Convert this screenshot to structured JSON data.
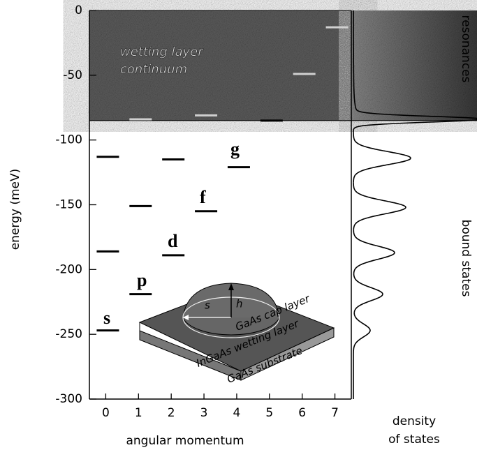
{
  "chart_data": {
    "type": "level",
    "y_label": "energy (meV)",
    "x_label": "angular momentum",
    "xlim": [
      -0.5,
      7.5
    ],
    "xticks": [
      0,
      1,
      2,
      3,
      4,
      5,
      6,
      7
    ],
    "ylim": [
      -300,
      0
    ],
    "yticks": [
      0,
      -50,
      -100,
      -150,
      -200,
      -250,
      -300
    ],
    "continuum_edge": -85,
    "continuum_label": [
      "wetting layer",
      "continuum"
    ],
    "x": [
      0,
      0,
      0,
      1,
      1,
      1,
      2,
      2,
      3,
      3,
      4,
      5,
      6,
      7
    ],
    "values": [
      -113,
      -186,
      -247,
      -84,
      -151,
      -219,
      -115,
      -189,
      -81,
      -155,
      -121,
      -85,
      -49,
      -13
    ],
    "color": "#000000",
    "orbital_labels": [
      "s",
      "p",
      "d",
      "f",
      "g"
    ],
    "inset_labels": [
      "GaAs cap layer",
      "InGaAs wetting layer",
      "GaAs substrate",
      "s",
      "h"
    ],
    "dos": {
      "label": [
        "density",
        "of states"
      ],
      "region_labels": [
        "resonances",
        "bound states"
      ],
      "energies": [
        -84,
        -114,
        -152,
        -187,
        -219,
        -247
      ],
      "heights": [
        1.8,
        0.82,
        0.75,
        0.59,
        0.42,
        0.24
      ]
    }
  }
}
